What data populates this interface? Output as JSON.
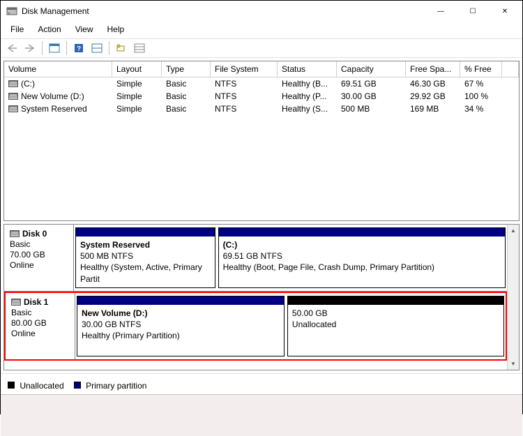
{
  "window": {
    "title": "Disk Management",
    "buttons": {
      "min": "—",
      "max": "☐",
      "close": "✕"
    }
  },
  "menu": {
    "file": "File",
    "action": "Action",
    "view": "View",
    "help": "Help"
  },
  "columns": {
    "volume": "Volume",
    "layout": "Layout",
    "type": "Type",
    "fs": "File System",
    "status": "Status",
    "capacity": "Capacity",
    "free": "Free Spa...",
    "pct": "% Free"
  },
  "volumes": [
    {
      "name": "(C:)",
      "layout": "Simple",
      "type": "Basic",
      "fs": "NTFS",
      "status": "Healthy (B...",
      "capacity": "69.51 GB",
      "free": "46.30 GB",
      "pct": "67 %"
    },
    {
      "name": "New Volume (D:)",
      "layout": "Simple",
      "type": "Basic",
      "fs": "NTFS",
      "status": "Healthy (P...",
      "capacity": "30.00 GB",
      "free": "29.92 GB",
      "pct": "100 %"
    },
    {
      "name": "System Reserved",
      "layout": "Simple",
      "type": "Basic",
      "fs": "NTFS",
      "status": "Healthy (S...",
      "capacity": "500 MB",
      "free": "169 MB",
      "pct": "34 %"
    }
  ],
  "disks": [
    {
      "label": "Disk 0",
      "kind": "Basic",
      "size": "70.00 GB",
      "state": "Online",
      "highlight": false,
      "parts": [
        {
          "title": "System Reserved",
          "sub": "500 MB NTFS",
          "detail": "Healthy (System, Active, Primary Partit",
          "stripe": "#000080",
          "flex": 30
        },
        {
          "title": "(C:)",
          "sub": "69.51 GB NTFS",
          "detail": "Healthy (Boot, Page File, Crash Dump, Primary Partition)",
          "stripe": "#000080",
          "flex": 62
        }
      ]
    },
    {
      "label": "Disk 1",
      "kind": "Basic",
      "size": "80.00 GB",
      "state": "Online",
      "highlight": true,
      "parts": [
        {
          "title": "New Volume  (D:)",
          "sub": "30.00 GB NTFS",
          "detail": "Healthy (Primary Partition)",
          "stripe": "#000080",
          "flex": 45
        },
        {
          "title": "",
          "sub": "50.00 GB",
          "detail": "Unallocated",
          "stripe": "#000000",
          "flex": 47
        }
      ]
    }
  ],
  "legend": {
    "unallocated": {
      "label": "Unallocated",
      "color": "#000000"
    },
    "primary": {
      "label": "Primary partition",
      "color": "#000080"
    }
  },
  "colors": {
    "stripe_primary": "#000080",
    "stripe_unallocated": "#000000",
    "highlight": "#ff0000",
    "footer_bg": "#f3eded"
  }
}
